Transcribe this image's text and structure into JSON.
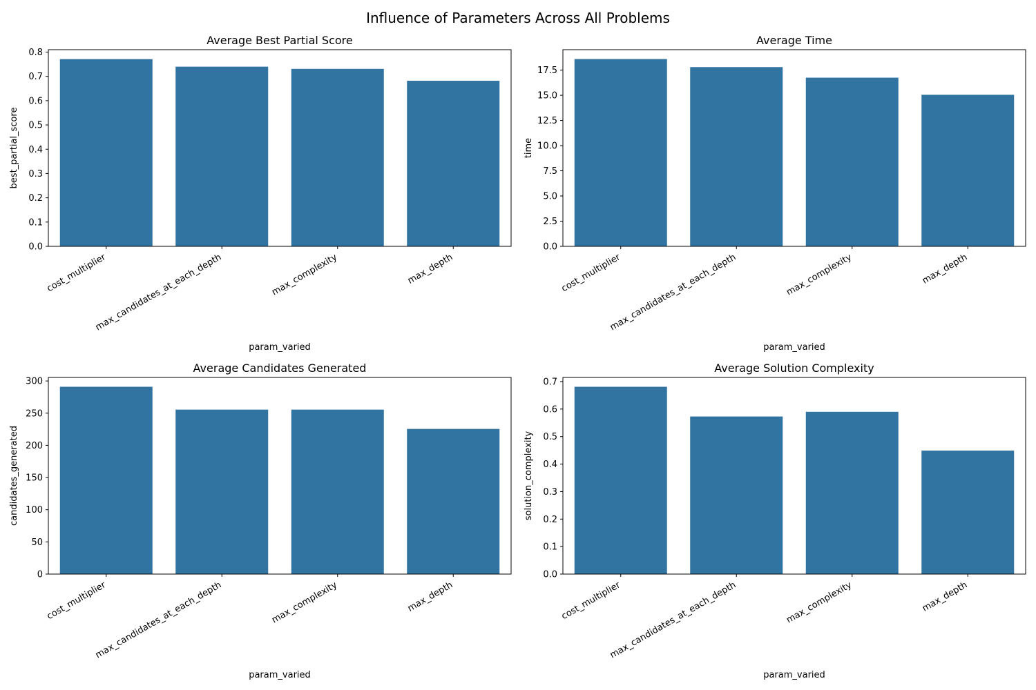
{
  "figure": {
    "title": "Influence of Parameters Across All Problems",
    "bar_color": "#3274a1"
  },
  "chart_data": [
    {
      "type": "bar",
      "title": "Average Best Partial Score",
      "xlabel": "param_varied",
      "ylabel": "best_partial_score",
      "categories": [
        "cost_multiplier",
        "max_candidates_at_each_depth",
        "max_complexity",
        "max_depth"
      ],
      "values": [
        0.771,
        0.74,
        0.731,
        0.682
      ],
      "ylim": [
        0,
        0.81
      ],
      "yticks": [
        0,
        0.1,
        0.2,
        0.3,
        0.4,
        0.5,
        0.6,
        0.7,
        0.8
      ],
      "ytick_labels": [
        "0.0",
        "0.1",
        "0.2",
        "0.3",
        "0.4",
        "0.5",
        "0.6",
        "0.7",
        "0.8"
      ],
      "grid": false,
      "legend": false
    },
    {
      "type": "bar",
      "title": "Average Time",
      "xlabel": "param_varied",
      "ylabel": "time",
      "categories": [
        "cost_multiplier",
        "max_candidates_at_each_depth",
        "max_complexity",
        "max_depth"
      ],
      "values": [
        18.6,
        17.8,
        16.75,
        15.05
      ],
      "ylim": [
        0,
        19.53
      ],
      "yticks": [
        0,
        2.5,
        5,
        7.5,
        10,
        12.5,
        15,
        17.5
      ],
      "ytick_labels": [
        "0.0",
        "2.5",
        "5.0",
        "7.5",
        "10.0",
        "12.5",
        "15.0",
        "17.5"
      ],
      "grid": false,
      "legend": false
    },
    {
      "type": "bar",
      "title": "Average Candidates Generated",
      "xlabel": "param_varied",
      "ylabel": "candidates_generated",
      "categories": [
        "cost_multiplier",
        "max_candidates_at_each_depth",
        "max_complexity",
        "max_depth"
      ],
      "values": [
        291,
        255.5,
        255.5,
        225.5
      ],
      "ylim": [
        0,
        305.5
      ],
      "yticks": [
        0,
        50,
        100,
        150,
        200,
        250,
        300
      ],
      "ytick_labels": [
        "0",
        "50",
        "100",
        "150",
        "200",
        "250",
        "300"
      ],
      "grid": false,
      "legend": false
    },
    {
      "type": "bar",
      "title": "Average Solution Complexity",
      "xlabel": "param_varied",
      "ylabel": "solution_complexity",
      "categories": [
        "cost_multiplier",
        "max_candidates_at_each_depth",
        "max_complexity",
        "max_depth"
      ],
      "values": [
        0.681,
        0.573,
        0.59,
        0.449
      ],
      "ylim": [
        0,
        0.715
      ],
      "yticks": [
        0,
        0.1,
        0.2,
        0.3,
        0.4,
        0.5,
        0.6,
        0.7
      ],
      "ytick_labels": [
        "0.0",
        "0.1",
        "0.2",
        "0.3",
        "0.4",
        "0.5",
        "0.6",
        "0.7"
      ],
      "grid": false,
      "legend": false
    }
  ]
}
